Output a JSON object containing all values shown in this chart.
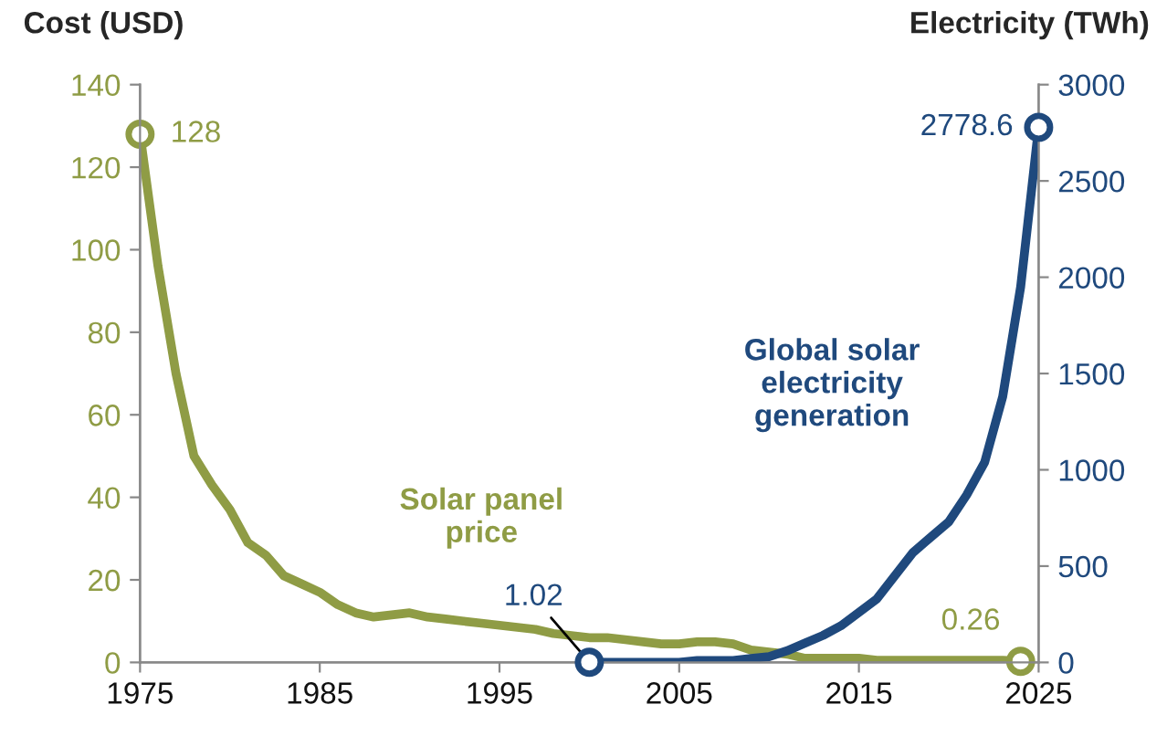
{
  "chart_data": {
    "type": "line",
    "ylabel": "Cost (USD)",
    "y2label": "Electricity (TWh)",
    "xlim": [
      1975,
      2025
    ],
    "xticks": [
      1975,
      1985,
      1995,
      2005,
      2015,
      2025
    ],
    "ylim": [
      0,
      140
    ],
    "yticks": [
      0,
      20,
      40,
      60,
      80,
      100,
      120,
      140
    ],
    "y2lim": [
      0,
      3000
    ],
    "y2ticks": [
      0,
      500,
      1000,
      1500,
      2000,
      2500,
      3000
    ],
    "grid": false,
    "legend": false,
    "marker": "none",
    "line_style": "solid",
    "series": [
      {
        "name": "Solar panel price",
        "color": "#8f9c45",
        "x": [
          1975,
          1976,
          1977,
          1978,
          1979,
          1980,
          1981,
          1982,
          1983,
          1984,
          1985,
          1986,
          1987,
          1988,
          1989,
          1990,
          1991,
          1992,
          1993,
          1994,
          1995,
          1996,
          1997,
          1998,
          1999,
          2000,
          2001,
          2002,
          2003,
          2004,
          2005,
          2006,
          2007,
          2008,
          2009,
          2010,
          2011,
          2012,
          2013,
          2014,
          2015,
          2016,
          2017,
          2018,
          2019,
          2020,
          2021,
          2022,
          2023,
          2024
        ],
        "values": [
          128,
          96,
          70,
          50,
          43,
          37,
          29,
          26,
          21,
          19,
          17,
          14,
          12,
          11,
          11.5,
          12,
          11,
          10.5,
          10,
          9.5,
          9,
          8.5,
          8,
          7,
          6.5,
          6,
          6,
          5.5,
          5,
          4.5,
          4.5,
          5,
          5,
          4.5,
          3,
          2.5,
          2,
          1,
          1,
          1,
          1,
          0.5,
          0.5,
          0.5,
          0.5,
          0.5,
          0.5,
          0.5,
          0.5,
          0.26
        ],
        "value_labels": [
          "128",
          null,
          null,
          null,
          null,
          null,
          null,
          null,
          null,
          null,
          null,
          null,
          null,
          null,
          null,
          null,
          null,
          null,
          null,
          null,
          null,
          null,
          null,
          null,
          null,
          null,
          null,
          null,
          null,
          null,
          null,
          null,
          null,
          null,
          null,
          null,
          null,
          null,
          null,
          null,
          null,
          null,
          null,
          null,
          null,
          null,
          null,
          null,
          null,
          "0.26"
        ]
      },
      {
        "name": "Global solar electricity generation",
        "color": "#1f497d",
        "axis": "y2",
        "x": [
          2000,
          2001,
          2002,
          2003,
          2004,
          2005,
          2006,
          2007,
          2008,
          2009,
          2010,
          2011,
          2012,
          2013,
          2014,
          2015,
          2016,
          2017,
          2018,
          2019,
          2020,
          2021,
          2022,
          2023,
          2024,
          2025
        ],
        "values": [
          1.02,
          0,
          0,
          0,
          0,
          0,
          10,
          10,
          10,
          20,
          30,
          60,
          100,
          140,
          190,
          260,
          330,
          450,
          570,
          650,
          730,
          870,
          1040,
          1380,
          1950,
          2778.6
        ],
        "value_labels": [
          "1.02",
          null,
          null,
          null,
          null,
          null,
          null,
          null,
          null,
          null,
          null,
          null,
          null,
          null,
          null,
          null,
          null,
          null,
          null,
          null,
          null,
          null,
          null,
          null,
          null,
          "2778.6"
        ]
      }
    ]
  }
}
